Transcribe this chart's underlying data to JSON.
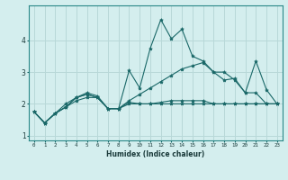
{
  "xlabel": "Humidex (Indice chaleur)",
  "background_color": "#d4eeee",
  "grid_color": "#b8d8d8",
  "line_color": "#1a6868",
  "x": [
    0,
    1,
    2,
    3,
    4,
    5,
    6,
    7,
    8,
    9,
    10,
    11,
    12,
    13,
    14,
    15,
    16,
    17,
    18,
    19,
    20,
    21,
    22,
    23
  ],
  "line1": [
    1.75,
    1.4,
    1.7,
    1.9,
    2.2,
    2.3,
    2.2,
    1.85,
    1.85,
    2.0,
    2.0,
    2.0,
    2.0,
    2.0,
    2.0,
    2.0,
    2.0,
    2.0,
    2.0,
    2.0,
    2.0,
    2.0,
    2.0,
    2.0
  ],
  "line2": [
    1.75,
    1.4,
    1.7,
    2.0,
    2.2,
    2.35,
    2.25,
    1.85,
    1.85,
    3.05,
    2.5,
    3.75,
    4.65,
    4.05,
    4.35,
    3.5,
    3.35,
    3.0,
    3.0,
    2.75,
    2.35,
    3.35,
    2.45,
    2.0
  ],
  "line3": [
    1.75,
    1.4,
    1.7,
    1.9,
    2.1,
    2.2,
    2.2,
    1.85,
    1.85,
    2.1,
    2.3,
    2.5,
    2.7,
    2.9,
    3.1,
    3.2,
    3.3,
    3.0,
    2.75,
    2.8,
    2.35,
    2.35,
    2.0,
    2.0
  ],
  "line4": [
    1.75,
    1.4,
    1.7,
    1.9,
    2.2,
    2.3,
    2.2,
    1.85,
    1.85,
    2.05,
    2.0,
    2.0,
    2.05,
    2.1,
    2.1,
    2.1,
    2.1,
    2.0,
    2.0,
    2.0,
    2.0,
    2.0,
    2.0,
    2.0
  ],
  "ylim": [
    0.85,
    5.1
  ],
  "yticks": [
    1,
    2,
    3,
    4
  ],
  "xticks": [
    0,
    1,
    2,
    3,
    4,
    5,
    6,
    7,
    8,
    9,
    10,
    11,
    12,
    13,
    14,
    15,
    16,
    17,
    18,
    19,
    20,
    21,
    22,
    23
  ]
}
